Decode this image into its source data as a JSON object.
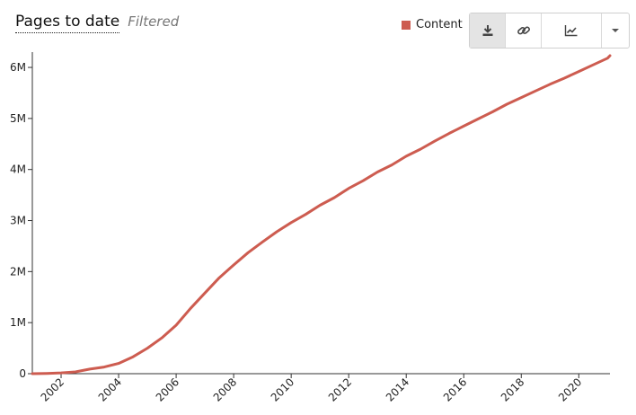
{
  "header": {
    "title": "Pages to date",
    "subtitle": "Filtered"
  },
  "legend": {
    "label": "Content",
    "color": "#cd5c50"
  },
  "toolbar": {
    "buttons": [
      {
        "name": "download",
        "icon": "download-icon"
      },
      {
        "name": "link",
        "icon": "link-icon"
      },
      {
        "name": "chart-type",
        "icon": "line-chart-icon"
      },
      {
        "name": "dropdown",
        "icon": "caret-down-icon"
      }
    ]
  },
  "chart_data": {
    "type": "line",
    "series": [
      {
        "name": "Content",
        "color": "#cd5c50",
        "points": [
          [
            "2001-01",
            0
          ],
          [
            "2001-07",
            5000
          ],
          [
            "2002-01",
            15000
          ],
          [
            "2002-07",
            35000
          ],
          [
            "2003-01",
            90000
          ],
          [
            "2003-07",
            130000
          ],
          [
            "2004-01",
            200000
          ],
          [
            "2004-07",
            330000
          ],
          [
            "2005-01",
            500000
          ],
          [
            "2005-07",
            700000
          ],
          [
            "2006-01",
            950000
          ],
          [
            "2006-07",
            1280000
          ],
          [
            "2007-01",
            1580000
          ],
          [
            "2007-07",
            1880000
          ],
          [
            "2008-01",
            2130000
          ],
          [
            "2008-07",
            2370000
          ],
          [
            "2009-01",
            2580000
          ],
          [
            "2009-07",
            2780000
          ],
          [
            "2010-01",
            2960000
          ],
          [
            "2010-07",
            3120000
          ],
          [
            "2011-01",
            3300000
          ],
          [
            "2011-07",
            3450000
          ],
          [
            "2012-01",
            3630000
          ],
          [
            "2012-07",
            3780000
          ],
          [
            "2013-01",
            3950000
          ],
          [
            "2013-07",
            4090000
          ],
          [
            "2014-01",
            4260000
          ],
          [
            "2014-07",
            4400000
          ],
          [
            "2015-01",
            4560000
          ],
          [
            "2015-07",
            4710000
          ],
          [
            "2016-01",
            4850000
          ],
          [
            "2016-07",
            4990000
          ],
          [
            "2017-01",
            5130000
          ],
          [
            "2017-07",
            5280000
          ],
          [
            "2018-01",
            5410000
          ],
          [
            "2018-07",
            5540000
          ],
          [
            "2019-01",
            5670000
          ],
          [
            "2019-07",
            5790000
          ],
          [
            "2020-01",
            5920000
          ],
          [
            "2020-07",
            6050000
          ],
          [
            "2021-01",
            6180000
          ],
          [
            "2021-02",
            6230000
          ]
        ]
      }
    ],
    "x_ticks": [
      "2002",
      "2004",
      "2006",
      "2008",
      "2010",
      "2012",
      "2014",
      "2016",
      "2018",
      "2020"
    ],
    "y_ticks": [
      {
        "value": 0,
        "label": "0"
      },
      {
        "value": 1000000,
        "label": "1M"
      },
      {
        "value": 2000000,
        "label": "2M"
      },
      {
        "value": 3000000,
        "label": "3M"
      },
      {
        "value": 4000000,
        "label": "4M"
      },
      {
        "value": 5000000,
        "label": "5M"
      },
      {
        "value": 6000000,
        "label": "6M"
      }
    ],
    "xlim": [
      "2001-01",
      "2021-02"
    ],
    "ylim": [
      0,
      6300000
    ],
    "grid": false,
    "legend_position": "top-right"
  }
}
